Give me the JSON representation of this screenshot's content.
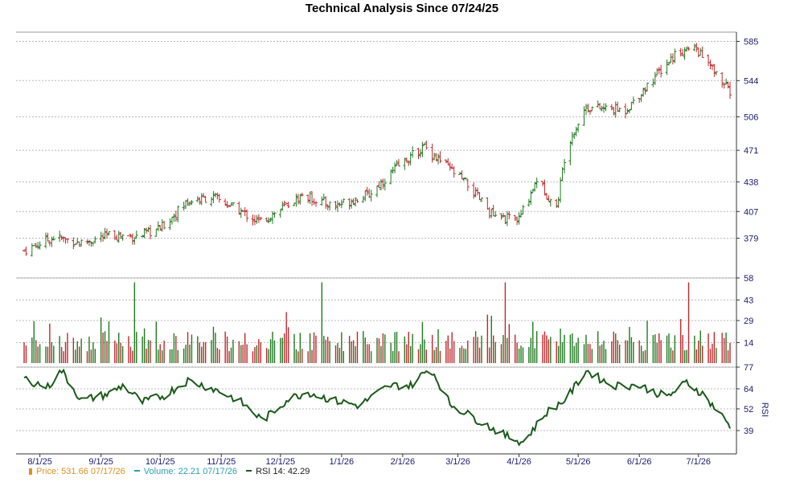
{
  "title": "Technical Analysis Since 07/24/25",
  "chart_data": {
    "type": "ohlc",
    "x_tick_labels": [
      "8/1/25",
      "9/1/25",
      "10/1/25",
      "11/1/25",
      "12/1/25",
      "1/1/26",
      "2/1/26",
      "3/1/26",
      "4/1/26",
      "5/1/26",
      "6/1/26",
      "7/1/26"
    ],
    "price_axis": {
      "ticks": [
        379,
        407,
        438,
        471,
        506,
        544,
        585
      ],
      "ylim": [
        340,
        593
      ]
    },
    "volume_axis": {
      "ticks": [
        14,
        29,
        43,
        58
      ],
      "ylim": [
        0,
        58
      ]
    },
    "rsi_axis": {
      "label": "RSI",
      "ticks": [
        39,
        52,
        64,
        77
      ],
      "ylim": [
        26,
        77
      ]
    },
    "price_keypoints": [
      [
        "7/24/25",
        366
      ],
      [
        "8/8/25",
        380
      ],
      [
        "8/22/25",
        374
      ],
      [
        "9/5/25",
        382
      ],
      [
        "9/20/25",
        381
      ],
      [
        "10/1/25",
        389
      ],
      [
        "10/15/25",
        418
      ],
      [
        "10/28/25",
        422
      ],
      [
        "11/10/25",
        408
      ],
      [
        "11/20/25",
        396
      ],
      [
        "12/1/25",
        409
      ],
      [
        "12/12/25",
        424
      ],
      [
        "12/28/25",
        413
      ],
      [
        "1/15/26",
        425
      ],
      [
        "1/30/26",
        455
      ],
      [
        "2/12/26",
        475
      ],
      [
        "2/20/26",
        460
      ],
      [
        "3/5/26",
        437
      ],
      [
        "3/20/26",
        400
      ],
      [
        "4/1/26",
        399
      ],
      [
        "4/10/26",
        441
      ],
      [
        "4/20/26",
        410
      ],
      [
        "4/25/26",
        476
      ],
      [
        "5/5/26",
        516
      ],
      [
        "5/25/26",
        513
      ],
      [
        "6/5/26",
        539
      ],
      [
        "6/20/26",
        574
      ],
      [
        "6/30/26",
        577
      ],
      [
        "7/17/26",
        532
      ]
    ],
    "rsi_keypoints": [
      [
        "7/24/25",
        70
      ],
      [
        "8/5/25",
        65
      ],
      [
        "8/12/25",
        75
      ],
      [
        "8/22/25",
        57
      ],
      [
        "9/5/25",
        61
      ],
      [
        "9/12/25",
        66
      ],
      [
        "9/22/25",
        56
      ],
      [
        "10/3/25",
        60
      ],
      [
        "10/15/25",
        69
      ],
      [
        "10/28/25",
        64
      ],
      [
        "11/10/25",
        57
      ],
      [
        "11/22/25",
        45
      ],
      [
        "12/5/25",
        58
      ],
      [
        "12/15/25",
        62
      ],
      [
        "12/28/25",
        57
      ],
      [
        "1/10/26",
        54
      ],
      [
        "1/25/26",
        66
      ],
      [
        "2/5/26",
        66
      ],
      [
        "2/15/26",
        77
      ],
      [
        "2/25/26",
        55
      ],
      [
        "3/10/26",
        46
      ],
      [
        "3/25/26",
        36
      ],
      [
        "4/3/26",
        32
      ],
      [
        "4/15/26",
        50
      ],
      [
        "4/25/26",
        58
      ],
      [
        "5/5/26",
        75
      ],
      [
        "5/18/26",
        66
      ],
      [
        "6/1/26",
        66
      ],
      [
        "6/15/26",
        59
      ],
      [
        "6/25/26",
        68
      ],
      [
        "7/3/26",
        61
      ],
      [
        "7/17/26",
        42
      ]
    ],
    "volume_range": [
      8,
      58
    ]
  },
  "legend": {
    "price_label": "Price: 531.66",
    "price_date": "07/17/26",
    "volume_label": "Volume: 22.21",
    "volume_date": "07/17/26",
    "rsi_label": "RSI 14: 42.29"
  },
  "colors": {
    "up": "#1f7a1f",
    "down": "#c0282c",
    "rsi": "#1a5a1a",
    "grid": "#b8b8b8",
    "axis_text": "#1a1a70",
    "price_legend": "#e09020",
    "volume_legend": "#2aa0b0"
  }
}
